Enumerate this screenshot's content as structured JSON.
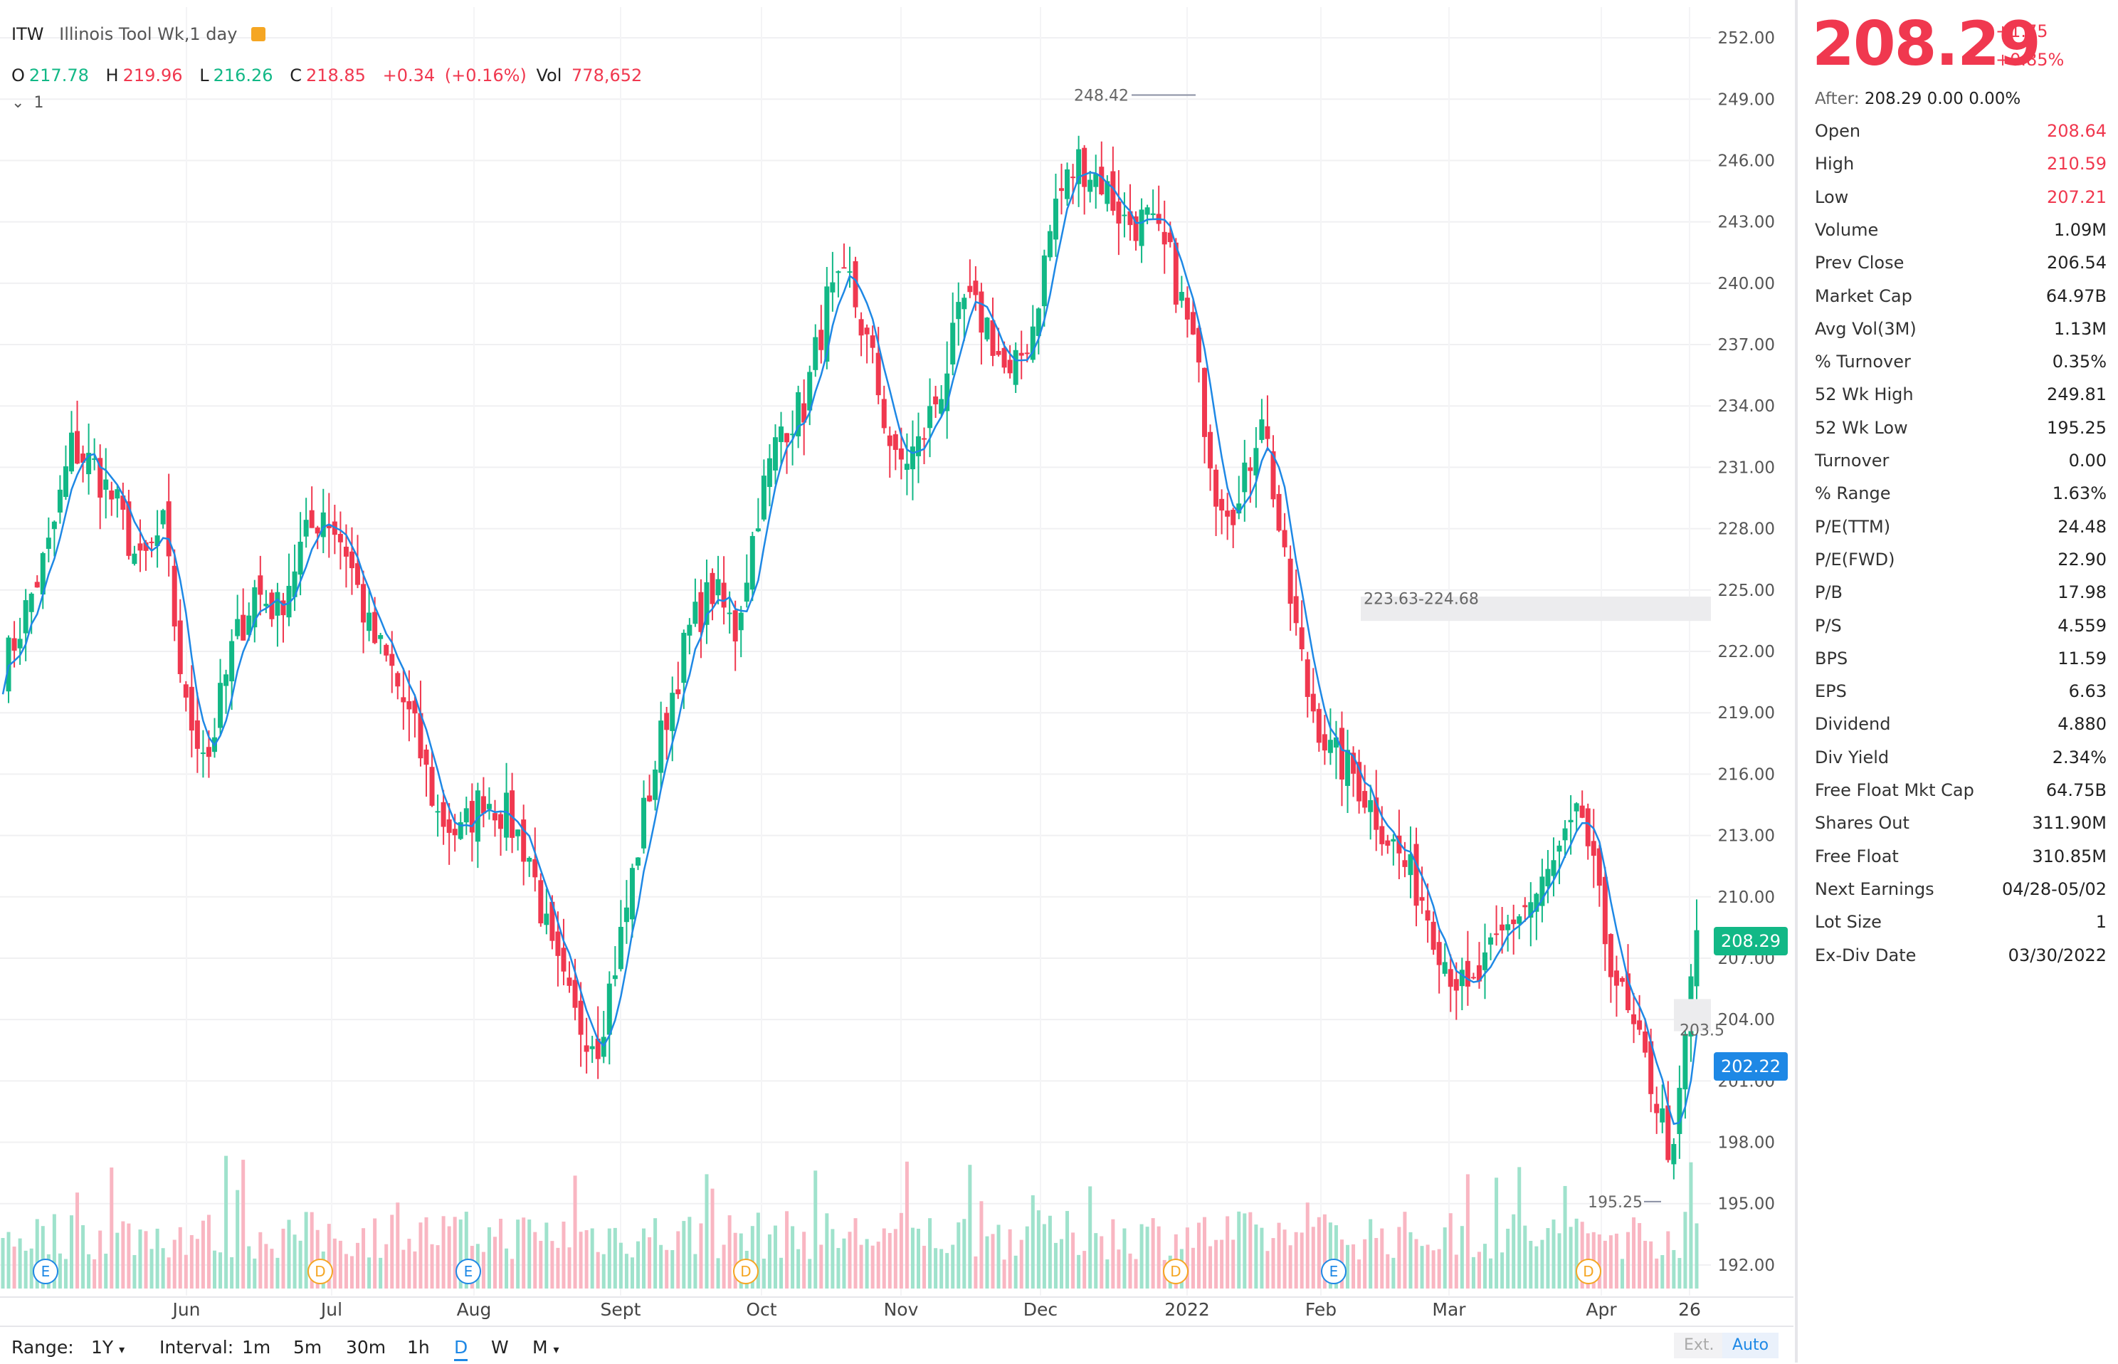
{
  "header": {
    "symbol": "ITW",
    "name": "Illinois Tool Wk,1 day",
    "ohlc": {
      "o_label": "O",
      "o": "217.78",
      "h_label": "H",
      "h": "219.96",
      "l_label": "L",
      "l": "216.26",
      "c_label": "C",
      "c": "218.85",
      "chg": "+0.34",
      "chg_pct": "(+0.16%)",
      "vol_label": "Vol",
      "vol": "778,652"
    },
    "indicator_toggle": "1"
  },
  "chart_data": {
    "type": "candlestick",
    "ylim": [
      190.5,
      253.5
    ],
    "y_ticks": [
      "252.00",
      "249.00",
      "246.00",
      "243.00",
      "240.00",
      "237.00",
      "234.00",
      "231.00",
      "228.00",
      "225.00",
      "222.00",
      "219.00",
      "216.00",
      "213.00",
      "210.00",
      "207.00",
      "204.00",
      "201.00",
      "198.00",
      "195.00",
      "192.00"
    ],
    "x_ticks": [
      "Jun",
      "Jul",
      "Aug",
      "Sept",
      "Oct",
      "Nov",
      "Dec",
      "2022",
      "Feb",
      "Mar",
      "Apr",
      "26"
    ],
    "overlay": "moving average (blue)",
    "close_path": [
      [
        0,
        221
      ],
      [
        8,
        227
      ],
      [
        12,
        232
      ],
      [
        16,
        231
      ],
      [
        20,
        229
      ],
      [
        24,
        226
      ],
      [
        28,
        228
      ],
      [
        32,
        219
      ],
      [
        36,
        217
      ],
      [
        40,
        222
      ],
      [
        44,
        225
      ],
      [
        48,
        224
      ],
      [
        52,
        227
      ],
      [
        56,
        229
      ],
      [
        60,
        227
      ],
      [
        64,
        223
      ],
      [
        68,
        221
      ],
      [
        72,
        218
      ],
      [
        76,
        214
      ],
      [
        80,
        213
      ],
      [
        84,
        215
      ],
      [
        88,
        214
      ],
      [
        92,
        212
      ],
      [
        96,
        207
      ],
      [
        100,
        204
      ],
      [
        104,
        203
      ],
      [
        108,
        208
      ],
      [
        112,
        214
      ],
      [
        116,
        219
      ],
      [
        120,
        223
      ],
      [
        124,
        225
      ],
      [
        128,
        223
      ],
      [
        132,
        229
      ],
      [
        136,
        233
      ],
      [
        140,
        234
      ],
      [
        144,
        239
      ],
      [
        148,
        240
      ],
      [
        152,
        236
      ],
      [
        156,
        231
      ],
      [
        160,
        232
      ],
      [
        164,
        235
      ],
      [
        168,
        239
      ],
      [
        172,
        238
      ],
      [
        176,
        235
      ],
      [
        180,
        238
      ],
      [
        184,
        244
      ],
      [
        188,
        246
      ],
      [
        192,
        245
      ],
      [
        196,
        243
      ],
      [
        200,
        243
      ],
      [
        204,
        241
      ],
      [
        208,
        237
      ],
      [
        212,
        230
      ],
      [
        216,
        229
      ],
      [
        220,
        234
      ],
      [
        224,
        226
      ],
      [
        228,
        220
      ],
      [
        232,
        217
      ],
      [
        236,
        216
      ],
      [
        240,
        214
      ],
      [
        244,
        212
      ],
      [
        248,
        210
      ],
      [
        252,
        207
      ],
      [
        256,
        205
      ],
      [
        260,
        207
      ],
      [
        264,
        209
      ],
      [
        268,
        210
      ],
      [
        272,
        212
      ],
      [
        276,
        214
      ],
      [
        280,
        208
      ],
      [
        284,
        204
      ],
      [
        288,
        201
      ],
      [
        292,
        197
      ],
      [
        294,
        203
      ],
      [
        296,
        208.29
      ]
    ],
    "annotations": [
      "248.42",
      "223.63-224.68",
      "195.25",
      "203.5"
    ],
    "current_price_tag": "208.29",
    "ma_tag": "202.22",
    "events": [
      "E",
      "D",
      "E",
      "D",
      "D",
      "E",
      "D"
    ]
  },
  "quote": {
    "price": "208.29",
    "change": "+1.75",
    "change_pct": "+0.85%",
    "after_label": "After:",
    "after_value": "208.29 0.00 0.00%",
    "stats": [
      {
        "k": "Open",
        "v": "208.64",
        "red": true
      },
      {
        "k": "High",
        "v": "210.59",
        "red": true
      },
      {
        "k": "Low",
        "v": "207.21",
        "red": true
      },
      {
        "k": "Volume",
        "v": "1.09M"
      },
      {
        "k": "Prev Close",
        "v": "206.54"
      },
      {
        "k": "Market Cap",
        "v": "64.97B"
      },
      {
        "k": "Avg Vol(3M)",
        "v": "1.13M"
      },
      {
        "k": "% Turnover",
        "v": "0.35%"
      },
      {
        "k": "52 Wk High",
        "v": "249.81"
      },
      {
        "k": "52 Wk Low",
        "v": "195.25"
      },
      {
        "k": "Turnover",
        "v": "0.00"
      },
      {
        "k": "% Range",
        "v": "1.63%"
      },
      {
        "k": "P/E(TTM)",
        "v": "24.48"
      },
      {
        "k": "P/E(FWD)",
        "v": "22.90"
      },
      {
        "k": "P/B",
        "v": "17.98"
      },
      {
        "k": "P/S",
        "v": "4.559"
      },
      {
        "k": "BPS",
        "v": "11.59"
      },
      {
        "k": "EPS",
        "v": "6.63"
      },
      {
        "k": "Dividend",
        "v": "4.880"
      },
      {
        "k": "Div Yield",
        "v": "2.34%"
      },
      {
        "k": "Free Float Mkt Cap",
        "v": "64.75B"
      },
      {
        "k": "Shares Out",
        "v": "311.90M"
      },
      {
        "k": "Free Float",
        "v": "310.85M"
      },
      {
        "k": "Next Earnings",
        "v": "04/28-05/02"
      },
      {
        "k": "Lot Size",
        "v": "1"
      },
      {
        "k": "Ex-Div Date",
        "v": "03/30/2022"
      }
    ]
  },
  "bottom_bar": {
    "range_label": "Range:",
    "range_value": "1Y",
    "interval_label": "Interval:",
    "intervals": [
      "1m",
      "5m",
      "30m",
      "1h",
      "D",
      "W",
      "M"
    ],
    "active_interval": "D",
    "ext": "Ext.",
    "auto": "Auto"
  },
  "colors": {
    "up": "#12b886",
    "down": "#f0384f",
    "ma": "#1e88e5",
    "vol_up": "#9fe2cc",
    "vol_down": "#f9b6c2"
  }
}
